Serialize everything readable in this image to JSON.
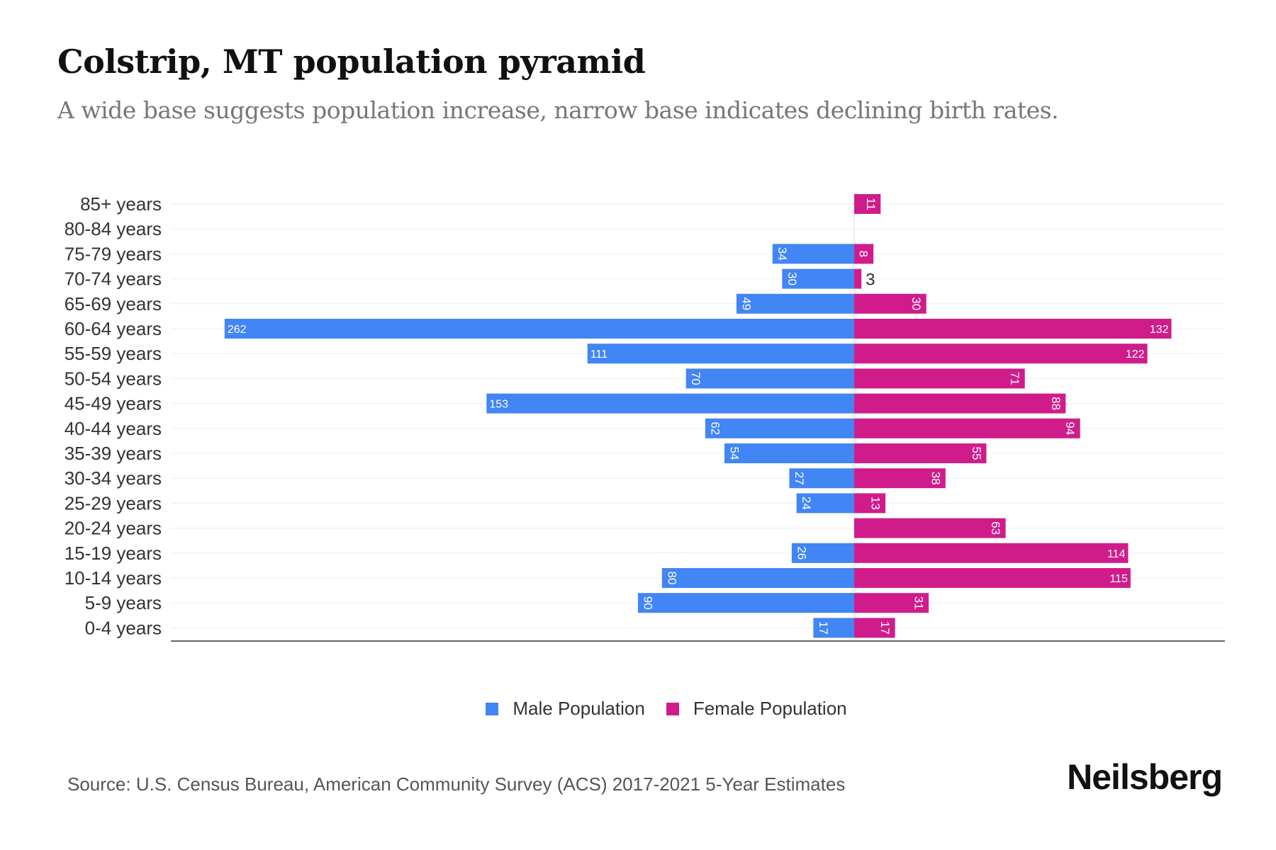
{
  "title": "Colstrip, MT population pyramid",
  "subtitle": "A wide base suggests population increase, narrow base indicates declining birth rates.",
  "source": "Source: U.S. Census Bureau, American Community Survey (ACS) 2017-2021 5-Year Estimates",
  "logo": "Neilsberg",
  "chart_data": {
    "type": "bar",
    "orientation": "horizontal-diverging",
    "categories": [
      "85+ years",
      "80-84 years",
      "75-79 years",
      "70-74 years",
      "65-69 years",
      "60-64 years",
      "55-59 years",
      "50-54 years",
      "45-49 years",
      "40-44 years",
      "35-39 years",
      "30-34 years",
      "25-29 years",
      "20-24 years",
      "15-19 years",
      "10-14 years",
      "5-9 years",
      "0-4 years"
    ],
    "series": [
      {
        "name": "Male Population",
        "color": "#4285f4",
        "values": [
          0,
          0,
          34,
          30,
          49,
          262,
          111,
          70,
          153,
          62,
          54,
          27,
          24,
          0,
          26,
          80,
          90,
          17
        ]
      },
      {
        "name": "Female Population",
        "color": "#d01c8b",
        "values": [
          11,
          0,
          8,
          3,
          30,
          132,
          122,
          71,
          88,
          94,
          55,
          38,
          13,
          63,
          114,
          115,
          31,
          17
        ]
      }
    ],
    "legend": "bottom-center",
    "grid": true
  }
}
